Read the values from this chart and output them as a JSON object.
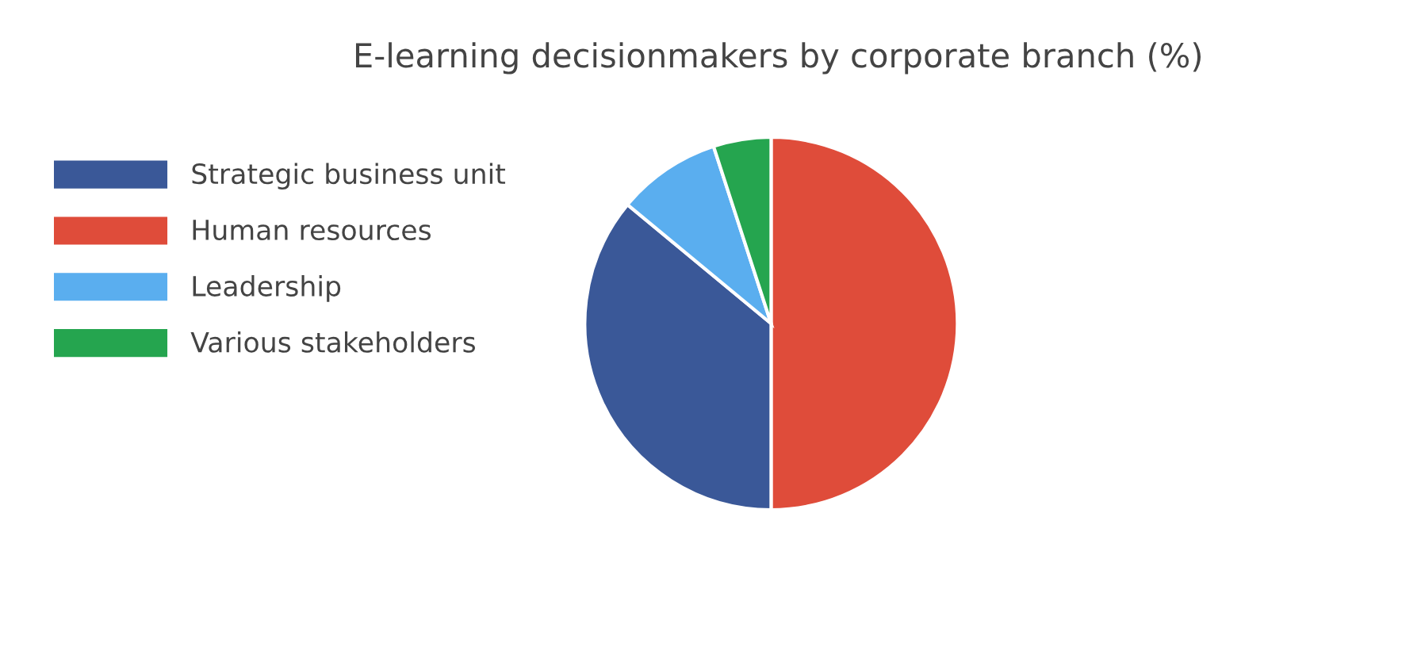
{
  "chart_data": {
    "type": "pie",
    "title": "E-learning decisionmakers by corporate branch (%)",
    "categories": [
      "Strategic business unit",
      "Human resources",
      "Leadership",
      "Various stakeholders"
    ],
    "values": [
      36,
      50,
      9,
      5
    ],
    "colors": [
      "#3a5898",
      "#df4c3a",
      "#5aaeef",
      "#25a54f"
    ],
    "legend": "left"
  }
}
